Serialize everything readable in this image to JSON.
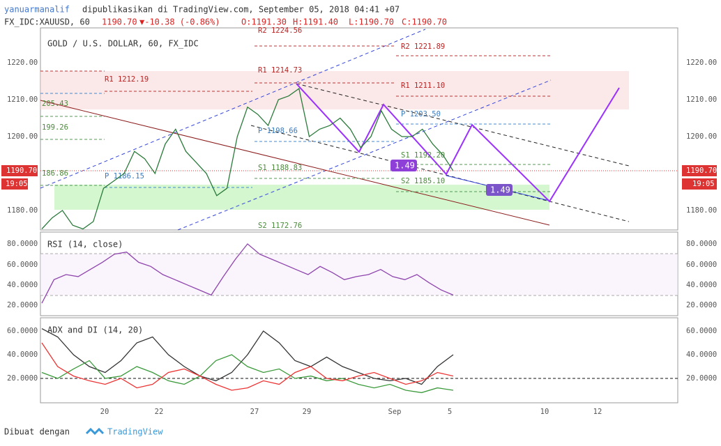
{
  "header": {
    "author": "yanuarmanalif",
    "published": "dipublikasikan di TradingView.com, September 05, 2018 04:41 +07",
    "symbol": "FX_IDC:XAUUSD, 60",
    "last": "1190.70",
    "change": "▼-10.38 (-0.86%)",
    "ohlc": [
      "O:1191.30",
      "H:1191.40",
      "L:1190.70",
      "C:1190.70"
    ]
  },
  "main_pane": {
    "title": "GOLD / U.S. DOLLAR, 60, FX_IDC",
    "axis": [
      "1220.00",
      "1210.00",
      "1200.00",
      "1180.00"
    ],
    "price_badge": "1190.70",
    "time_badge": "19:05",
    "levels": [
      "R2 1224.56",
      "R2 1221.89",
      "R1 1214.73",
      "R1 1212.19",
      "R1 1211.10",
      "205.43",
      "P 1203.50",
      "199.26",
      "P 1198.66",
      "S1 1192.20",
      "S1 1188.83",
      "186.86",
      "P 1186.15",
      "S2 1185.10",
      "S2 1172.76"
    ],
    "badges": [
      "1.49",
      "1.49"
    ],
    "close": [
      1175,
      1178,
      1180,
      1176,
      1175,
      1177,
      1186,
      1188,
      1190,
      1196,
      1194,
      1190,
      1198,
      1202,
      1196,
      1193,
      1190,
      1184,
      1186,
      1200,
      1208,
      1206,
      1203,
      1210,
      1211,
      1213,
      1200,
      1202,
      1203,
      1205,
      1202,
      1197,
      1200,
      1207,
      1202,
      1200,
      1200,
      1202,
      1198,
      1195,
      1190.7
    ]
  },
  "rsi_pane": {
    "title": "RSI (14, close)",
    "axis": [
      "80.0000",
      "60.0000",
      "40.0000",
      "20.0000"
    ],
    "values": [
      22,
      45,
      50,
      48,
      55,
      62,
      70,
      72,
      62,
      58,
      50,
      45,
      40,
      35,
      30,
      48,
      65,
      80,
      70,
      65,
      60,
      55,
      50,
      58,
      52,
      45,
      48,
      50,
      55,
      48,
      45,
      50,
      42,
      35,
      30
    ]
  },
  "adx_pane": {
    "title": "ADX and DI (14, 20)",
    "axis": [
      "60.0000",
      "40.0000",
      "20.0000"
    ],
    "adx": [
      62,
      55,
      40,
      30,
      25,
      35,
      50,
      55,
      40,
      30,
      22,
      18,
      25,
      40,
      60,
      50,
      35,
      30,
      38,
      30,
      25,
      20,
      18,
      20,
      15,
      30,
      40
    ],
    "plus_di": [
      25,
      20,
      28,
      35,
      20,
      22,
      30,
      25,
      18,
      15,
      22,
      35,
      40,
      30,
      25,
      28,
      20,
      22,
      18,
      20,
      15,
      12,
      15,
      10,
      8,
      12,
      10
    ],
    "minus_di": [
      50,
      30,
      22,
      18,
      15,
      20,
      12,
      15,
      25,
      28,
      22,
      15,
      10,
      12,
      18,
      15,
      25,
      30,
      20,
      18,
      22,
      25,
      20,
      15,
      18,
      25,
      22
    ]
  },
  "time_axis": [
    "20",
    "22",
    "27",
    "29",
    "Sep",
    "5",
    "10",
    "12"
  ],
  "footer": {
    "made_with": "Dibuat dengan",
    "brand": "TradingView"
  }
}
